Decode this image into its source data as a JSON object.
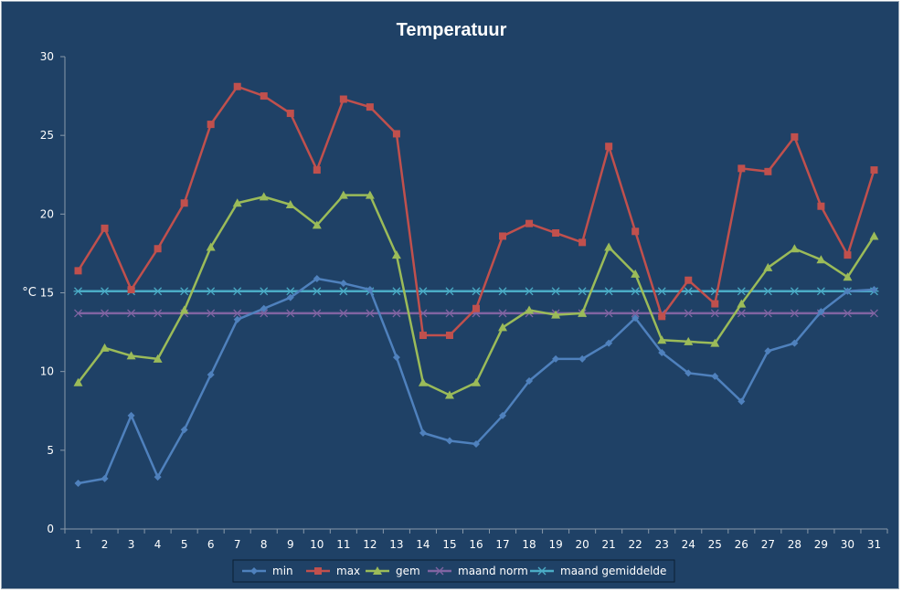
{
  "chart_data": {
    "type": "line",
    "title": "Temperatuur",
    "xlabel": "",
    "ylabel": "°C",
    "ylim": [
      0,
      30
    ],
    "yticks": [
      0,
      5,
      10,
      15,
      20,
      25,
      30
    ],
    "grid": false,
    "legend": "bottom",
    "categories": [
      "1",
      "2",
      "3",
      "4",
      "5",
      "6",
      "7",
      "8",
      "9",
      "10",
      "11",
      "12",
      "13",
      "14",
      "15",
      "16",
      "17",
      "18",
      "19",
      "20",
      "21",
      "22",
      "23",
      "24",
      "25",
      "26",
      "27",
      "28",
      "29",
      "30",
      "31"
    ],
    "series": [
      {
        "name": "min",
        "color": "#4f81bd",
        "marker": "diamond",
        "values": [
          2.9,
          3.2,
          7.2,
          3.3,
          6.3,
          9.8,
          13.3,
          14.0,
          14.7,
          15.9,
          15.6,
          15.2,
          10.9,
          6.1,
          5.6,
          5.4,
          7.2,
          9.4,
          10.8,
          10.8,
          11.8,
          13.4,
          11.2,
          9.9,
          9.7,
          8.1,
          11.3,
          11.8,
          13.8,
          15.1,
          15.2
        ]
      },
      {
        "name": "max",
        "color": "#c0504d",
        "marker": "square",
        "values": [
          16.4,
          19.1,
          15.2,
          17.8,
          20.7,
          25.7,
          28.1,
          27.5,
          26.4,
          22.8,
          27.3,
          26.8,
          25.1,
          12.3,
          12.3,
          14.0,
          18.6,
          19.4,
          18.8,
          18.2,
          24.3,
          18.9,
          13.5,
          15.8,
          14.3,
          22.9,
          22.7,
          24.9,
          20.5,
          17.4,
          22.8
        ]
      },
      {
        "name": "gem",
        "color": "#9bbb59",
        "marker": "triangle",
        "values": [
          9.3,
          11.5,
          11.0,
          10.8,
          13.9,
          17.9,
          20.7,
          21.1,
          20.6,
          19.3,
          21.2,
          21.2,
          17.4,
          9.3,
          8.5,
          9.3,
          12.8,
          13.9,
          13.6,
          13.7,
          17.9,
          16.2,
          12.0,
          11.9,
          11.8,
          14.3,
          16.6,
          17.8,
          17.1,
          16.0,
          18.6
        ]
      },
      {
        "name": "maand norm",
        "color": "#8064a2",
        "marker": "x",
        "values": [
          13.7,
          13.7,
          13.7,
          13.7,
          13.7,
          13.7,
          13.7,
          13.7,
          13.7,
          13.7,
          13.7,
          13.7,
          13.7,
          13.7,
          13.7,
          13.7,
          13.7,
          13.7,
          13.7,
          13.7,
          13.7,
          13.7,
          13.7,
          13.7,
          13.7,
          13.7,
          13.7,
          13.7,
          13.7,
          13.7,
          13.7
        ]
      },
      {
        "name": "maand gemiddelde",
        "color": "#4bacc6",
        "marker": "star",
        "values": [
          15.1,
          15.1,
          15.1,
          15.1,
          15.1,
          15.1,
          15.1,
          15.1,
          15.1,
          15.1,
          15.1,
          15.1,
          15.1,
          15.1,
          15.1,
          15.1,
          15.1,
          15.1,
          15.1,
          15.1,
          15.1,
          15.1,
          15.1,
          15.1,
          15.1,
          15.1,
          15.1,
          15.1,
          15.1,
          15.1,
          15.1
        ]
      }
    ]
  }
}
